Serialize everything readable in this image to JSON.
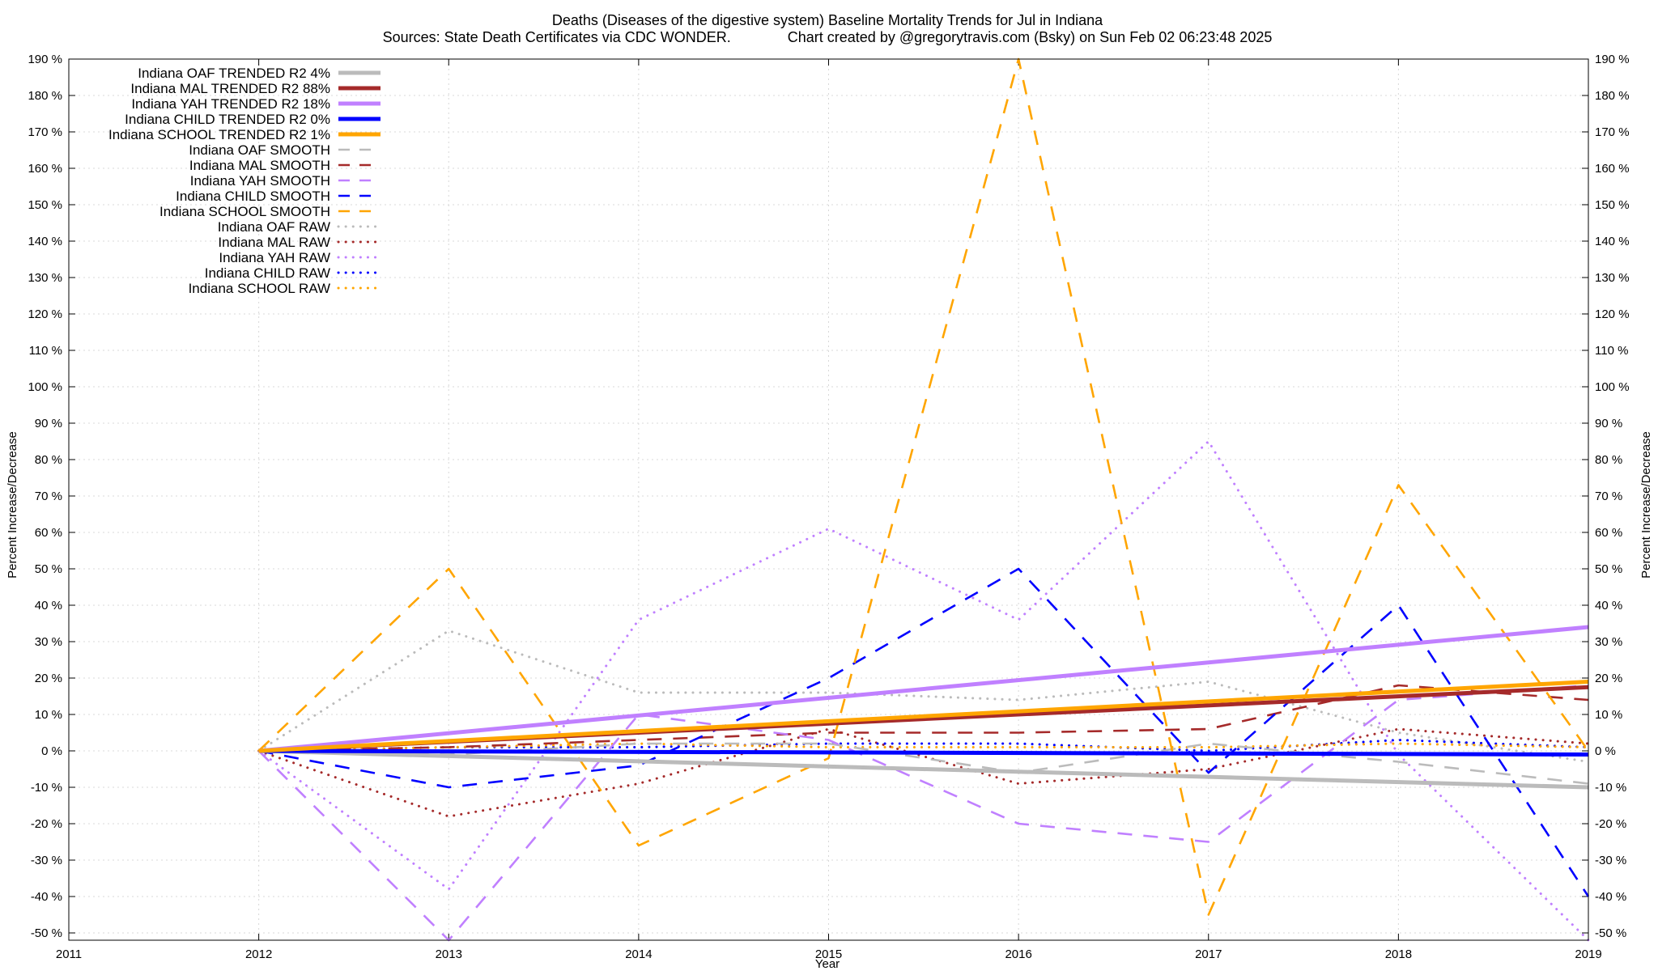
{
  "chart_data": {
    "type": "line",
    "title": "Deaths (Diseases of the digestive system)  Baseline Mortality Trends for Jul in Indiana",
    "subtitle": "Sources: State Death Certificates via CDC WONDER.              Chart created by @gregorytravis.com (Bsky) on Sun Feb 02 06:23:48 2025",
    "xlabel": "Year",
    "ylabel": "Percent Increase/Decrease",
    "xlim": [
      2011,
      2019
    ],
    "ylim": [
      -52,
      190
    ],
    "x_ticks": [
      2011,
      2012,
      2013,
      2014,
      2015,
      2016,
      2017,
      2018,
      2019
    ],
    "y_ticks": [
      -50,
      -40,
      -30,
      -20,
      -10,
      0,
      10,
      20,
      30,
      40,
      50,
      60,
      70,
      80,
      90,
      100,
      110,
      120,
      130,
      140,
      150,
      160,
      170,
      180,
      190
    ],
    "y_tick_labels": [
      "-50 %",
      "-40 %",
      "-30 %",
      "-20 %",
      "-10 %",
      "0 %",
      "10 %",
      "20 %",
      "30 %",
      "40 %",
      "50 %",
      "60 %",
      "70 %",
      "80 %",
      "90 %",
      "100 %",
      "110 %",
      "120 %",
      "130 %",
      "140 %",
      "150 %",
      "160 %",
      "170 %",
      "180 %",
      "190 %"
    ],
    "grid": true,
    "legend_position": "top-left",
    "series": [
      {
        "name": "Indiana OAF TRENDED R2   4%",
        "style": "trend",
        "color": "#bbbbbb",
        "x": [
          2012,
          2019
        ],
        "values": [
          0,
          -10
        ]
      },
      {
        "name": "Indiana MAL TRENDED R2  88%",
        "style": "trend",
        "color": "#a52a2a",
        "x": [
          2012,
          2019
        ],
        "values": [
          0,
          17.5
        ]
      },
      {
        "name": "Indiana YAH TRENDED R2  18%",
        "style": "trend",
        "color": "#c080ff",
        "x": [
          2012,
          2019
        ],
        "values": [
          0,
          34
        ]
      },
      {
        "name": "Indiana CHILD TRENDED R2   0%",
        "style": "trend",
        "color": "#0000ff",
        "x": [
          2012,
          2019
        ],
        "values": [
          0,
          -1
        ]
      },
      {
        "name": "Indiana SCHOOL TRENDED R2   1%",
        "style": "trend",
        "color": "#ffa500",
        "x": [
          2012,
          2019
        ],
        "values": [
          0,
          19
        ]
      },
      {
        "name": "Indiana OAF SMOOTH",
        "style": "smooth",
        "color": "#bbbbbb",
        "x": [
          2012,
          2013,
          2014,
          2015,
          2016,
          2017,
          2018,
          2019
        ],
        "values": [
          0,
          -1,
          2,
          2,
          -6,
          2,
          -3,
          -9
        ]
      },
      {
        "name": "Indiana MAL SMOOTH",
        "style": "smooth",
        "color": "#a52a2a",
        "x": [
          2012,
          2013,
          2014,
          2015,
          2016,
          2017,
          2018,
          2019
        ],
        "values": [
          0,
          1,
          3,
          5,
          5,
          6,
          18,
          14
        ]
      },
      {
        "name": "Indiana YAH SMOOTH",
        "style": "smooth",
        "color": "#c080ff",
        "x": [
          2012,
          2013,
          2014,
          2015,
          2016,
          2017,
          2018,
          2019
        ],
        "values": [
          0,
          -52,
          10,
          3,
          -20,
          -25,
          14,
          18
        ]
      },
      {
        "name": "Indiana CHILD SMOOTH",
        "style": "smooth",
        "color": "#0000ff",
        "x": [
          2012,
          2013,
          2014,
          2015,
          2016,
          2017,
          2018,
          2019
        ],
        "values": [
          0,
          -10,
          -4,
          20,
          50,
          -6,
          40,
          -40
        ]
      },
      {
        "name": "Indiana SCHOOL SMOOTH",
        "style": "smooth",
        "color": "#ffa500",
        "x": [
          2012,
          2013,
          2014,
          2015,
          2016,
          2017,
          2018,
          2019
        ],
        "values": [
          0,
          50,
          -26,
          -2,
          190,
          -45,
          73,
          0
        ]
      },
      {
        "name": "Indiana OAF RAW",
        "style": "raw",
        "color": "#bbbbbb",
        "x": [
          2012,
          2013,
          2014,
          2015,
          2016,
          2017,
          2018,
          2019
        ],
        "values": [
          0,
          33,
          16,
          16,
          14,
          19,
          5,
          -3
        ]
      },
      {
        "name": "Indiana MAL RAW",
        "style": "raw",
        "color": "#a52a2a",
        "x": [
          2012,
          2013,
          2014,
          2015,
          2016,
          2017,
          2018,
          2019
        ],
        "values": [
          0,
          -18,
          -9,
          6,
          -9,
          -5,
          6,
          2
        ]
      },
      {
        "name": "Indiana YAH RAW",
        "style": "raw",
        "color": "#c080ff",
        "x": [
          2012,
          2013,
          2014,
          2015,
          2016,
          2017,
          2018,
          2019
        ],
        "values": [
          0,
          -38,
          36,
          61,
          36,
          85,
          -1,
          -52
        ]
      },
      {
        "name": "Indiana CHILD RAW",
        "style": "raw",
        "color": "#0000ff",
        "x": [
          2012,
          2013,
          2014,
          2015,
          2016,
          2017,
          2018,
          2019
        ],
        "values": [
          0,
          1,
          1,
          2,
          2,
          0,
          3,
          1
        ]
      },
      {
        "name": "Indiana SCHOOL RAW",
        "style": "raw",
        "color": "#ffa500",
        "x": [
          2012,
          2013,
          2014,
          2015,
          2016,
          2017,
          2018,
          2019
        ],
        "values": [
          0,
          1,
          2,
          1,
          1,
          1,
          2,
          1
        ]
      }
    ]
  }
}
